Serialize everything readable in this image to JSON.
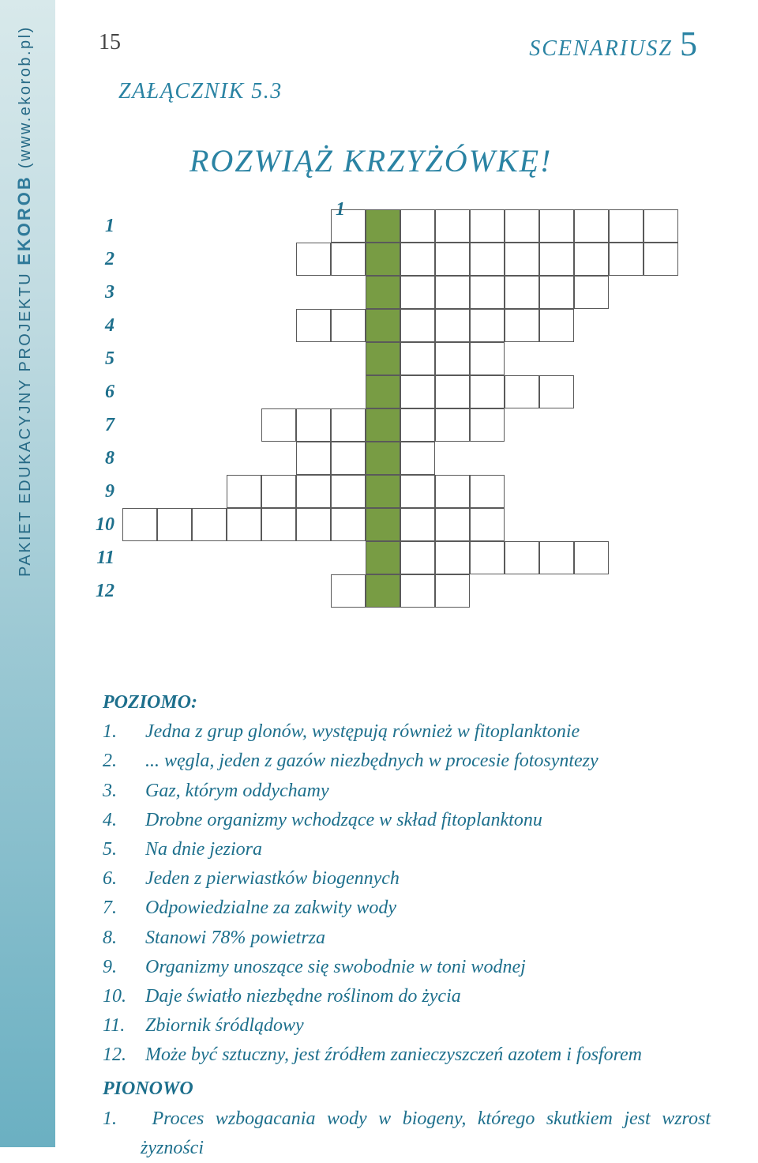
{
  "page_number": "15",
  "header_right": "SCENARIUSZ",
  "header_right_num": "5",
  "attachment": "ZAŁĄCZNIK 5.3",
  "title": "ROZWIĄŻ KRZYŻÓWKĘ!",
  "side_label_1": "PAKIET EDUKACYJNY PROJEKTU ",
  "side_label_2": "EKOROB",
  "side_label_3": " (www.ekorob.pl)",
  "col_header": "1",
  "rows": [
    {
      "n": "1",
      "cells": "SSSSSSXGXXXXXXXX"
    },
    {
      "n": "2",
      "cells": "SSSSSXXGXXXXXXXX"
    },
    {
      "n": "3",
      "cells": "SSSSSSSGXXXXXXSS"
    },
    {
      "n": "4",
      "cells": "SSSSSXXGXXXXXSSS"
    },
    {
      "n": "5",
      "cells": "SSSSSSSGXXXSSSSS"
    },
    {
      "n": "6",
      "cells": "SSSSSSSGXXXXXSSS"
    },
    {
      "n": "7",
      "cells": "SSSSXXXGXXXSSSSS"
    },
    {
      "n": "8",
      "cells": "SSSSSXXGXSSSSSSS"
    },
    {
      "n": "9",
      "cells": "SSSXXXXGXXXSSSSS"
    },
    {
      "n": "10",
      "cells": "XXXXXXXGXXXSSSSS"
    },
    {
      "n": "11",
      "cells": "SSSSSSSGXXXXXXSS"
    },
    {
      "n": "12",
      "cells": "SSSSSSXGXXSSSSSS"
    }
  ],
  "clues_heading_h": "POZIOMO:",
  "clues_h": [
    {
      "n": "1.",
      "t": "Jedna z grup glonów, występują również w fitoplanktonie"
    },
    {
      "n": "2.",
      "t": "... węgla, jeden z gazów niezbędnych w procesie fotosyntezy"
    },
    {
      "n": "3.",
      "t": "Gaz, którym oddychamy"
    },
    {
      "n": "4.",
      "t": "Drobne organizmy wchodzące w skład fitoplanktonu"
    },
    {
      "n": "5.",
      "t": "Na dnie jeziora"
    },
    {
      "n": "6.",
      "t": "Jeden z pierwiastków biogennych"
    },
    {
      "n": "7.",
      "t": "Odpowiedzialne za zakwity wody"
    },
    {
      "n": "8.",
      "t": "Stanowi 78% powietrza"
    },
    {
      "n": "9.",
      "t": "Organizmy unoszące się swobodnie w toni wodnej"
    },
    {
      "n": "10.",
      "t": "Daje światło niezbędne roślinom do życia"
    },
    {
      "n": "11.",
      "t": "Zbiornik śródlądowy"
    },
    {
      "n": "12.",
      "t": "Może być sztuczny, jest źródłem zanieczyszczeń azotem i fosforem"
    }
  ],
  "clues_heading_v": "PIONOWO",
  "clues_v": [
    {
      "n": "1.",
      "t": "Proces wzbogacania wody w biogeny, którego skutkiem jest wzrost żyzności"
    }
  ],
  "colors": {
    "teal": "#2a83a3",
    "green": "#789c44",
    "grid": "#5a5a5a"
  }
}
